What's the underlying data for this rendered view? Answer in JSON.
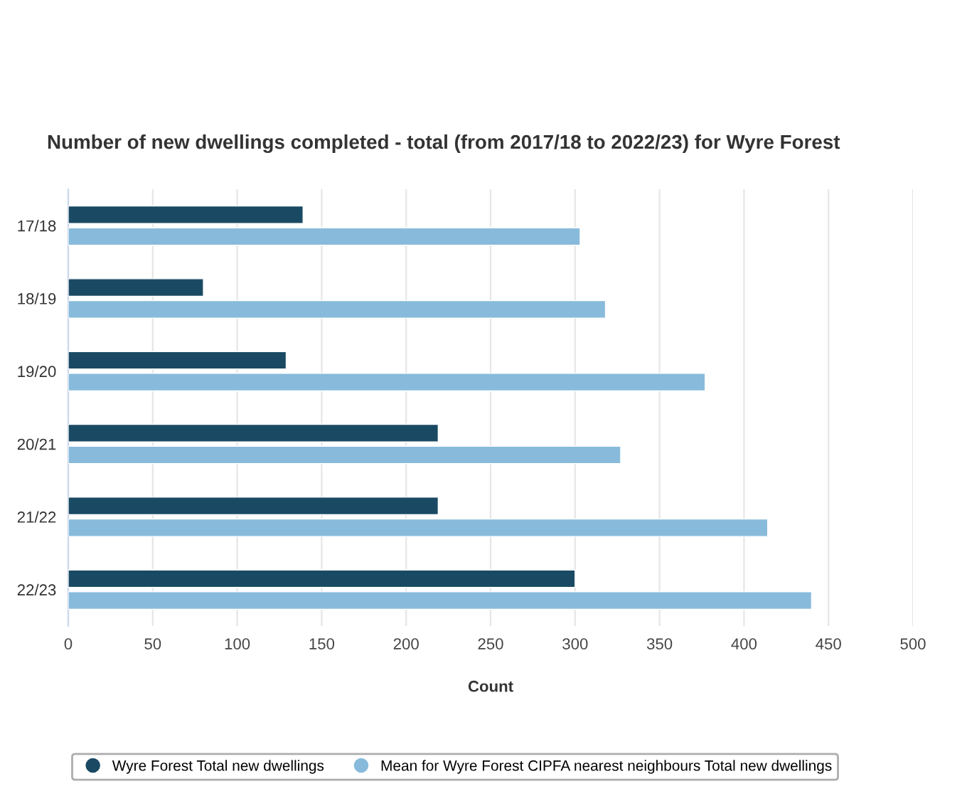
{
  "chart_data": {
    "type": "bar",
    "orientation": "horizontal",
    "title": "Number of new dwellings completed - total (from 2017/18 to 2022/23) for Wyre Forest",
    "xlabel": "Count",
    "categories": [
      "17/18",
      "18/19",
      "19/20",
      "20/21",
      "21/22",
      "22/23"
    ],
    "series": [
      {
        "name": "Wyre Forest Total new dwellings",
        "color": "#1a4a63",
        "values": [
          139,
          80,
          129,
          219,
          219,
          300
        ]
      },
      {
        "name": "Mean for Wyre Forest CIPFA nearest neighbours Total new dwellings",
        "color": "#88bbdb",
        "values": [
          303,
          318,
          377,
          327,
          414,
          440
        ]
      }
    ],
    "xlim": [
      0,
      500
    ],
    "xticks": [
      0,
      50,
      100,
      150,
      200,
      250,
      300,
      350,
      400,
      450,
      500
    ],
    "grid": "x",
    "legend": "bottom"
  }
}
